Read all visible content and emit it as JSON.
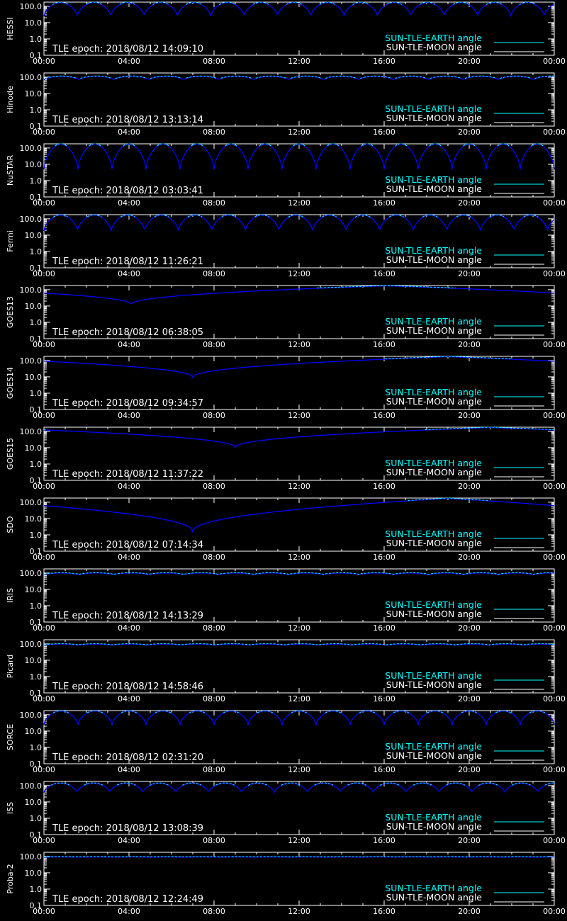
{
  "colors": {
    "background": "#000000",
    "axes": "#ffffff",
    "earth_series": "#00ffff",
    "moon_series": "#ffffff",
    "curve_dip": "#0000ff"
  },
  "common": {
    "y_tick_labels": [
      "100.0",
      "10.0",
      "1.0",
      "0.1"
    ],
    "x_tick_labels": [
      "00:00",
      "04:00",
      "08:00",
      "12:00",
      "16:00",
      "20:00",
      "00:00"
    ],
    "legend": {
      "earth": "SUN-TLE-EARTH angle",
      "moon": "SUN-TLE-MOON angle"
    }
  },
  "chart_data": [
    {
      "type": "line",
      "panel": "HESSI",
      "ylabel": "HESSI",
      "epoch": "TLE epoch: 2018/08/12 14:09:10",
      "log_y": true,
      "ylim": [
        0.1,
        180
      ],
      "xlim_hours": [
        0,
        24
      ],
      "orbits": 15.3,
      "min_angle": 25,
      "max_angle": 170,
      "series": [
        {
          "name": "SUN-TLE-EARTH angle"
        },
        {
          "name": "SUN-TLE-MOON angle"
        }
      ]
    },
    {
      "type": "line",
      "panel": "Hinode",
      "ylabel": "Hinode",
      "epoch": "TLE epoch: 2018/08/12 13:13:14",
      "log_y": true,
      "ylim": [
        0.1,
        180
      ],
      "xlim_hours": [
        0,
        24
      ],
      "orbits": 14.6,
      "min_angle": 68,
      "max_angle": 112,
      "series": [
        {
          "name": "SUN-TLE-EARTH angle"
        },
        {
          "name": "SUN-TLE-MOON angle"
        }
      ]
    },
    {
      "type": "line",
      "panel": "NuSTAR",
      "ylabel": "NuSTAR",
      "epoch": "TLE epoch: 2018/08/12 03:03:41",
      "log_y": true,
      "ylim": [
        0.1,
        180
      ],
      "xlim_hours": [
        0,
        24
      ],
      "orbits": 15.0,
      "min_angle": 5,
      "max_angle": 175,
      "series": [
        {
          "name": "SUN-TLE-EARTH angle"
        },
        {
          "name": "SUN-TLE-MOON angle"
        }
      ]
    },
    {
      "type": "line",
      "panel": "Fermi",
      "ylabel": "Fermi",
      "epoch": "TLE epoch: 2018/08/12 11:26:21",
      "log_y": true,
      "ylim": [
        0.1,
        180
      ],
      "xlim_hours": [
        0,
        24
      ],
      "orbits": 15.2,
      "min_angle": 18,
      "max_angle": 170,
      "series": [
        {
          "name": "SUN-TLE-EARTH angle"
        },
        {
          "name": "SUN-TLE-MOON angle"
        }
      ]
    },
    {
      "type": "line",
      "panel": "GOES13",
      "ylabel": "GOES13",
      "epoch": "TLE epoch: 2018/08/12 06:38:05",
      "log_y": true,
      "ylim": [
        0.1,
        180
      ],
      "xlim_hours": [
        0,
        24
      ],
      "orbits": 1.0,
      "dip_hour": 4.1,
      "min_angle": 12,
      "max_angle": 172,
      "series": [
        {
          "name": "SUN-TLE-EARTH angle"
        },
        {
          "name": "SUN-TLE-MOON angle"
        }
      ]
    },
    {
      "type": "line",
      "panel": "GOES14",
      "ylabel": "GOES14",
      "epoch": "TLE epoch: 2018/08/12 09:34:57",
      "log_y": true,
      "ylim": [
        0.1,
        180
      ],
      "xlim_hours": [
        0,
        24
      ],
      "orbits": 1.0,
      "dip_hour": 7.0,
      "min_angle": 9,
      "max_angle": 172,
      "series": [
        {
          "name": "SUN-TLE-EARTH angle"
        },
        {
          "name": "SUN-TLE-MOON angle"
        }
      ]
    },
    {
      "type": "line",
      "panel": "GOES15",
      "ylabel": "GOES15",
      "epoch": "TLE epoch: 2018/08/12 11:37:22",
      "log_y": true,
      "ylim": [
        0.1,
        180
      ],
      "xlim_hours": [
        0,
        24
      ],
      "orbits": 1.0,
      "dip_hour": 9.0,
      "min_angle": 10,
      "max_angle": 172,
      "series": [
        {
          "name": "SUN-TLE-EARTH angle"
        },
        {
          "name": "SUN-TLE-MOON angle"
        }
      ]
    },
    {
      "type": "line",
      "panel": "SDO",
      "ylabel": "SDO",
      "epoch": "TLE epoch: 2018/08/12 07:14:34",
      "log_y": true,
      "ylim": [
        0.1,
        180
      ],
      "xlim_hours": [
        0,
        24
      ],
      "orbits": 1.0,
      "dip_hour": 7.0,
      "min_angle": 1.5,
      "max_angle": 172,
      "series": [
        {
          "name": "SUN-TLE-EARTH angle"
        },
        {
          "name": "SUN-TLE-MOON angle"
        }
      ]
    },
    {
      "type": "line",
      "panel": "IRIS",
      "ylabel": "IRIS",
      "epoch": "TLE epoch: 2018/08/12 14:13:29",
      "log_y": true,
      "ylim": [
        0.1,
        180
      ],
      "xlim_hours": [
        0,
        24
      ],
      "orbits": 14.6,
      "min_angle": 78,
      "max_angle": 100,
      "series": [
        {
          "name": "SUN-TLE-EARTH angle"
        },
        {
          "name": "SUN-TLE-MOON angle"
        }
      ]
    },
    {
      "type": "line",
      "panel": "Picard",
      "ylabel": "Picard",
      "epoch": "TLE epoch: 2018/08/12 14:58:46",
      "log_y": true,
      "ylim": [
        0.1,
        180
      ],
      "xlim_hours": [
        0,
        24
      ],
      "orbits": 14.9,
      "min_angle": 82,
      "max_angle": 98,
      "series": [
        {
          "name": "SUN-TLE-EARTH angle"
        },
        {
          "name": "SUN-TLE-MOON angle"
        }
      ]
    },
    {
      "type": "line",
      "panel": "SORCE",
      "ylabel": "SORCE",
      "epoch": "TLE epoch: 2018/08/12 02:31:20",
      "log_y": true,
      "ylim": [
        0.1,
        180
      ],
      "xlim_hours": [
        0,
        24
      ],
      "orbits": 15.0,
      "min_angle": 25,
      "max_angle": 170,
      "series": [
        {
          "name": "SUN-TLE-EARTH angle"
        },
        {
          "name": "SUN-TLE-MOON angle"
        }
      ]
    },
    {
      "type": "line",
      "panel": "ISS",
      "ylabel": "ISS",
      "epoch": "TLE epoch: 2018/08/12 13:08:39",
      "log_y": true,
      "ylim": [
        0.1,
        180
      ],
      "xlim_hours": [
        0,
        24
      ],
      "orbits": 15.5,
      "min_angle": 38,
      "max_angle": 140,
      "series": [
        {
          "name": "SUN-TLE-EARTH angle"
        },
        {
          "name": "SUN-TLE-MOON angle"
        }
      ]
    },
    {
      "type": "line",
      "panel": "Proba-2",
      "ylabel": "Proba-2",
      "epoch": "TLE epoch: 2018/08/12 12:24:49",
      "log_y": true,
      "ylim": [
        0.1,
        180
      ],
      "xlim_hours": [
        0,
        24
      ],
      "orbits": 14.5,
      "min_angle": 88,
      "max_angle": 93,
      "series": [
        {
          "name": "SUN-TLE-EARTH angle"
        },
        {
          "name": "SUN-TLE-MOON angle"
        }
      ]
    }
  ]
}
